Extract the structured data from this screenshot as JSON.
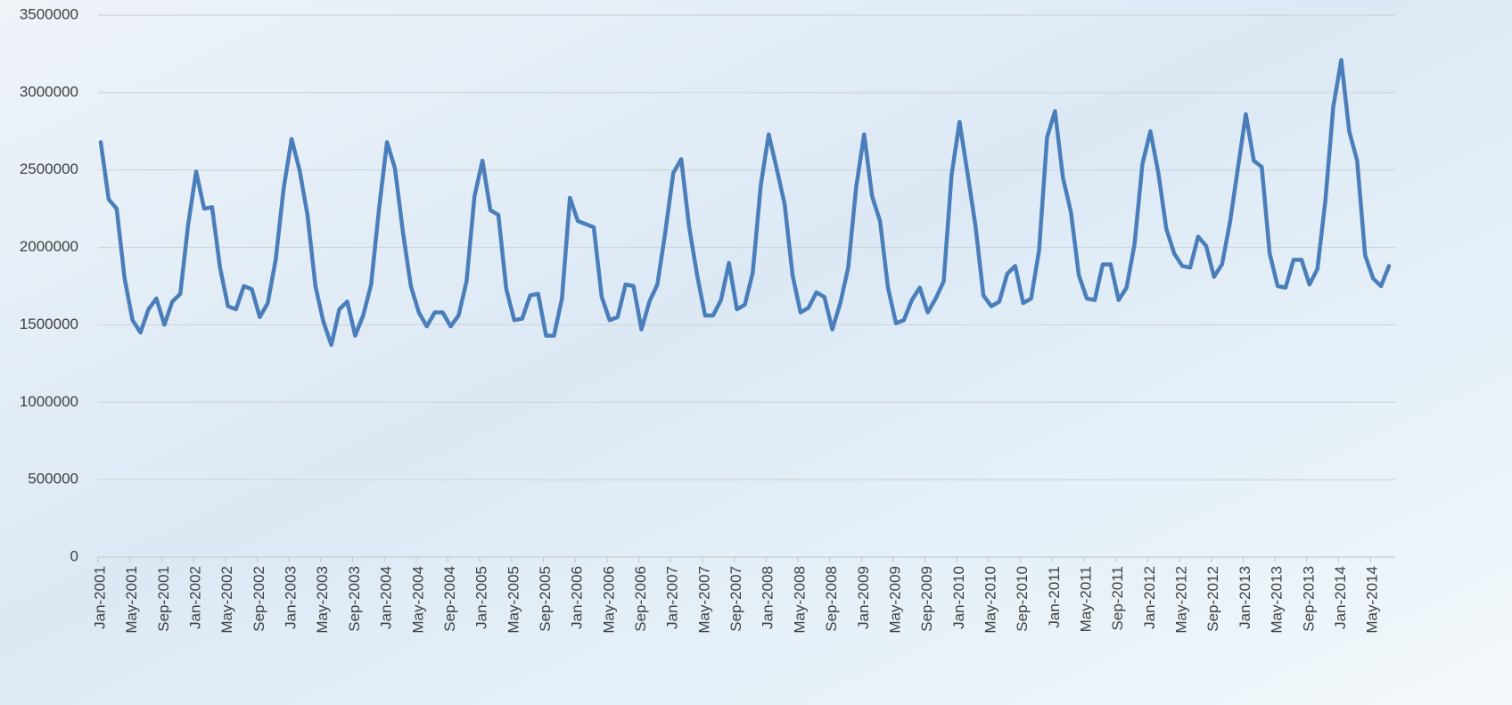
{
  "chart_data": {
    "type": "line",
    "categories": [
      "Jan-2001",
      null,
      null,
      null,
      "May-2001",
      null,
      null,
      null,
      "Sep-2001",
      null,
      null,
      null,
      "Jan-2002",
      null,
      null,
      null,
      "May-2002",
      null,
      null,
      null,
      "Sep-2002",
      null,
      null,
      null,
      "Jan-2003",
      null,
      null,
      null,
      "May-2003",
      null,
      null,
      null,
      "Sep-2003",
      null,
      null,
      null,
      "Jan-2004",
      null,
      null,
      null,
      "May-2004",
      null,
      null,
      null,
      "Sep-2004",
      null,
      null,
      null,
      "Jan-2005",
      null,
      null,
      null,
      "May-2005",
      null,
      null,
      null,
      "Sep-2005",
      null,
      null,
      null,
      "Jan-2006",
      null,
      null,
      null,
      "May-2006",
      null,
      null,
      null,
      "Sep-2006",
      null,
      null,
      null,
      "Jan-2007",
      null,
      null,
      null,
      "May-2007",
      null,
      null,
      null,
      "Sep-2007",
      null,
      null,
      null,
      "Jan-2008",
      null,
      null,
      null,
      "May-2008",
      null,
      null,
      null,
      "Sep-2008",
      null,
      null,
      null,
      "Jan-2009",
      null,
      null,
      null,
      "May-2009",
      null,
      null,
      null,
      "Sep-2009",
      null,
      null,
      null,
      "Jan-2010",
      null,
      null,
      null,
      "May-2010",
      null,
      null,
      null,
      "Sep-2010",
      null,
      null,
      null,
      "Jan-2011",
      null,
      null,
      null,
      "May-2011",
      null,
      null,
      null,
      "Sep-2011",
      null,
      null,
      null,
      "Jan-2012",
      null,
      null,
      null,
      "May-2012",
      null,
      null,
      null,
      "Sep-2012",
      null,
      null,
      null,
      "Jan-2013",
      null,
      null,
      null,
      "May-2013",
      null,
      null,
      null,
      "Sep-2013",
      null,
      null,
      null,
      "Jan-2014",
      null,
      null,
      null,
      "May-2014",
      null,
      null
    ],
    "values": [
      2680000,
      2310000,
      2250000,
      1800000,
      1530000,
      1450000,
      1600000,
      1670000,
      1500000,
      1650000,
      1700000,
      2150000,
      2490000,
      2250000,
      2260000,
      1870000,
      1620000,
      1600000,
      1750000,
      1730000,
      1550000,
      1640000,
      1920000,
      2380000,
      2700000,
      2500000,
      2210000,
      1750000,
      1520000,
      1370000,
      1600000,
      1650000,
      1430000,
      1560000,
      1760000,
      2250000,
      2680000,
      2510000,
      2100000,
      1750000,
      1580000,
      1490000,
      1580000,
      1580000,
      1490000,
      1560000,
      1780000,
      2330000,
      2560000,
      2240000,
      2210000,
      1730000,
      1530000,
      1540000,
      1690000,
      1700000,
      1430000,
      1430000,
      1670000,
      2320000,
      2170000,
      2150000,
      2130000,
      1680000,
      1530000,
      1550000,
      1760000,
      1750000,
      1470000,
      1650000,
      1760000,
      2100000,
      2480000,
      2570000,
      2130000,
      1820000,
      1560000,
      1560000,
      1660000,
      1900000,
      1600000,
      1630000,
      1840000,
      2400000,
      2730000,
      2510000,
      2280000,
      1820000,
      1580000,
      1610000,
      1710000,
      1680000,
      1470000,
      1640000,
      1870000,
      2390000,
      2730000,
      2330000,
      2170000,
      1740000,
      1510000,
      1530000,
      1660000,
      1740000,
      1580000,
      1670000,
      1780000,
      2470000,
      2810000,
      2480000,
      2140000,
      1690000,
      1620000,
      1650000,
      1830000,
      1880000,
      1640000,
      1670000,
      1980000,
      2710000,
      2880000,
      2450000,
      2230000,
      1820000,
      1670000,
      1660000,
      1890000,
      1890000,
      1660000,
      1740000,
      2020000,
      2540000,
      2750000,
      2480000,
      2120000,
      1960000,
      1880000,
      1870000,
      2070000,
      2010000,
      1810000,
      1890000,
      2160000,
      2510000,
      2860000,
      2560000,
      2520000,
      1960000,
      1750000,
      1740000,
      1920000,
      1920000,
      1760000,
      1860000,
      2300000,
      2910000,
      3210000,
      2750000,
      2560000,
      1950000,
      1800000,
      1750000,
      1880000
    ],
    "color": "#4a7ebb",
    "ylim": [
      0,
      3500000
    ],
    "yticks": [
      0,
      500000,
      1000000,
      1500000,
      2000000,
      2500000,
      3000000,
      3500000
    ],
    "grid": true
  }
}
